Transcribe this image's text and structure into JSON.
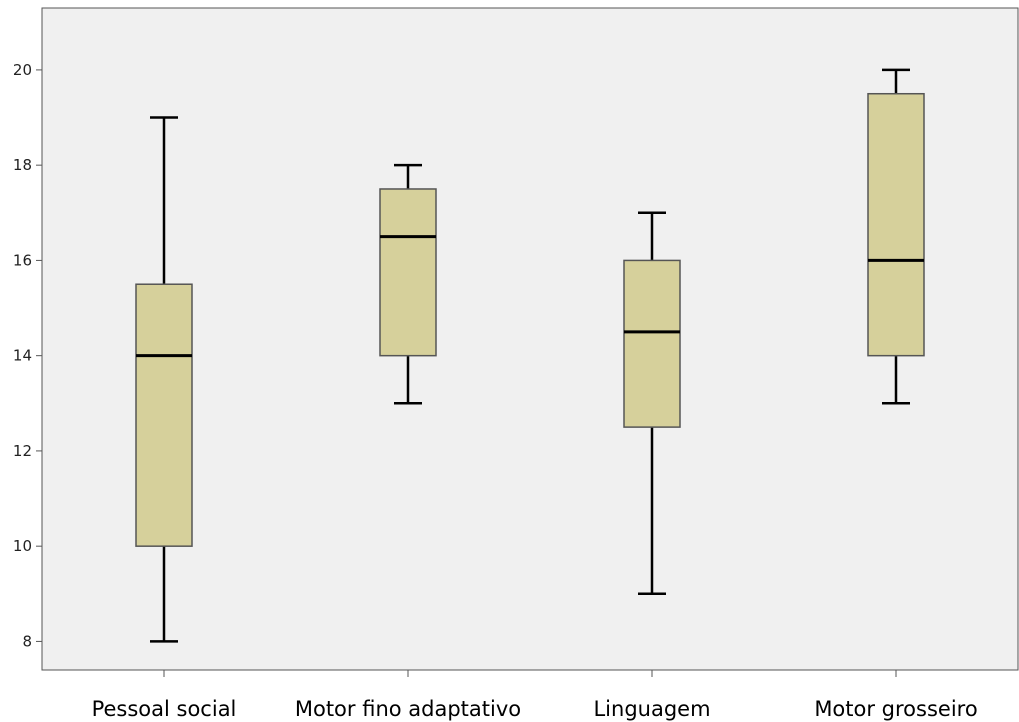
{
  "chart_data": {
    "type": "boxplot",
    "title": "",
    "xlabel": "",
    "ylabel": "",
    "ylim": [
      7.4,
      21.3
    ],
    "y_ticks": [
      "8",
      "10",
      "12",
      "14",
      "16",
      "18",
      "20"
    ],
    "grid": false,
    "categories": [
      "Pessoal social",
      "Motor fino adaptativo",
      "Linguagem",
      "Motor grosseiro"
    ],
    "boxes": [
      {
        "min": 8,
        "q1": 10,
        "median": 14,
        "q3": 15.5,
        "max": 19
      },
      {
        "min": 13,
        "q1": 14,
        "median": 16.5,
        "q3": 17.5,
        "max": 18
      },
      {
        "min": 9,
        "q1": 12.5,
        "median": 14.5,
        "q3": 16,
        "max": 17
      },
      {
        "min": 13,
        "q1": 14,
        "median": 16,
        "q3": 19.5,
        "max": 20
      }
    ],
    "colors": {
      "plot_background": "#f0f0f0",
      "box_fill": "#d6d09b",
      "box_stroke": "#555555",
      "whisker": "#000000"
    }
  }
}
